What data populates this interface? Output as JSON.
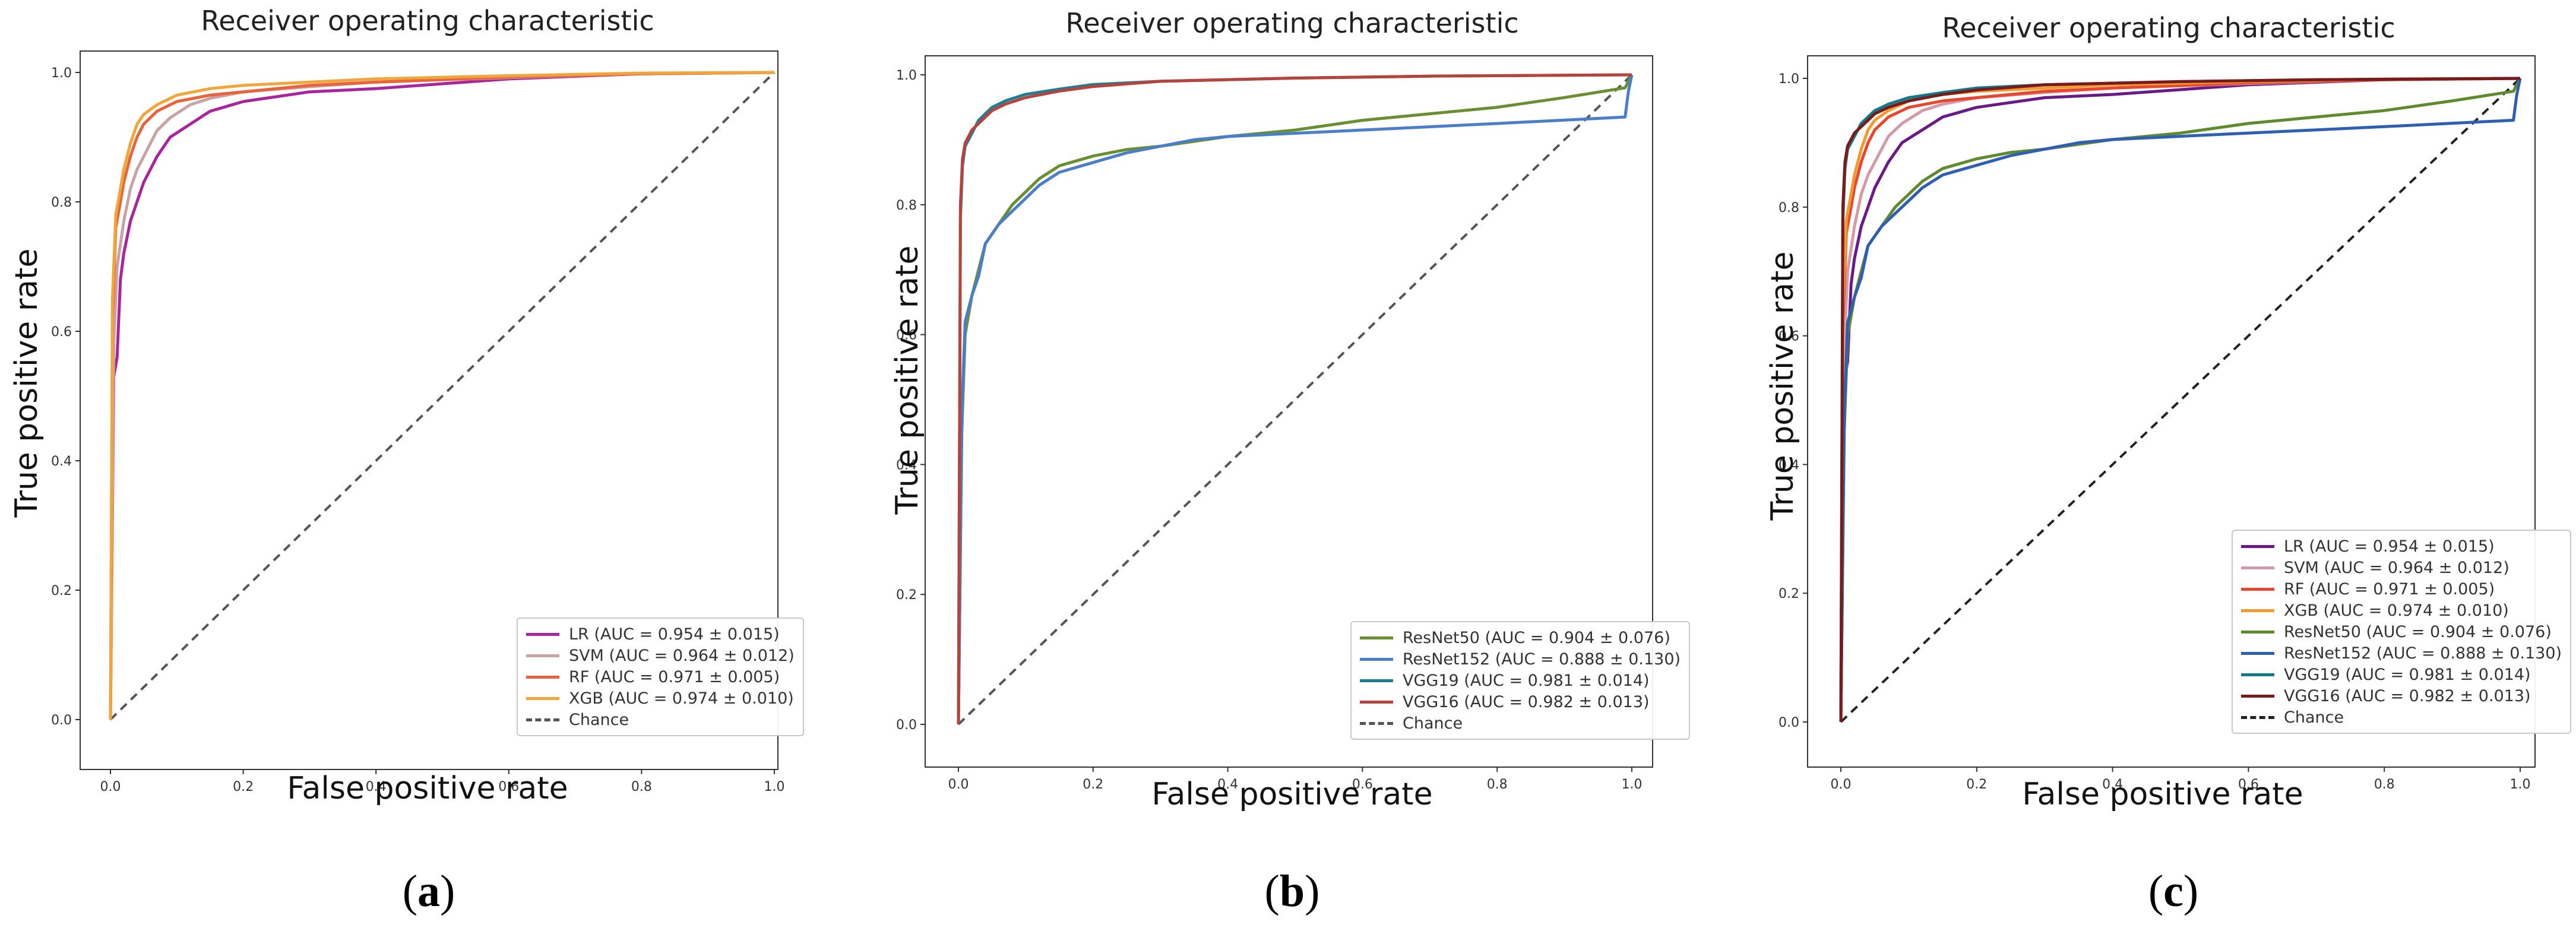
{
  "panels": [
    {
      "label": "a"
    },
    {
      "label": "b"
    },
    {
      "label": "c"
    }
  ],
  "chart_data": [
    {
      "type": "line",
      "title": "Receiver operating characteristic",
      "xlabel": "False positive rate",
      "ylabel": "True positive rate",
      "xlim": [
        0,
        1
      ],
      "ylim": [
        0,
        1
      ],
      "xticks": [
        "0.0",
        "0.2",
        "0.4",
        "0.6",
        "0.8",
        "1.0"
      ],
      "yticks": [
        "0.0",
        "0.2",
        "0.4",
        "0.6",
        "0.8",
        "1.0"
      ],
      "legend_position": "bottom-right",
      "series": [
        {
          "name": "LR (AUC = 0.954 ± 0.015)",
          "color": "#a8259c",
          "x": [
            0,
            0.005,
            0.01,
            0.015,
            0.02,
            0.03,
            0.04,
            0.05,
            0.07,
            0.09,
            0.12,
            0.15,
            0.2,
            0.3,
            0.4,
            0.6,
            0.8,
            1.0
          ],
          "y": [
            0,
            0.53,
            0.56,
            0.68,
            0.72,
            0.77,
            0.8,
            0.83,
            0.87,
            0.9,
            0.92,
            0.94,
            0.955,
            0.97,
            0.975,
            0.99,
            0.998,
            1.0
          ]
        },
        {
          "name": "SVM (AUC = 0.964 ± 0.012)",
          "color": "#c9a3a3",
          "x": [
            0,
            0.005,
            0.01,
            0.02,
            0.03,
            0.04,
            0.05,
            0.07,
            0.09,
            0.12,
            0.15,
            0.2,
            0.3,
            0.4,
            0.6,
            0.8,
            1.0
          ],
          "y": [
            0,
            0.58,
            0.7,
            0.77,
            0.82,
            0.85,
            0.87,
            0.91,
            0.93,
            0.95,
            0.96,
            0.97,
            0.978,
            0.985,
            0.992,
            0.998,
            1.0
          ]
        },
        {
          "name": "RF (AUC = 0.971 ± 0.005)",
          "color": "#e8643c",
          "x": [
            0,
            0.003,
            0.008,
            0.015,
            0.02,
            0.03,
            0.04,
            0.05,
            0.07,
            0.1,
            0.15,
            0.2,
            0.3,
            0.4,
            0.6,
            0.8,
            1.0
          ],
          "y": [
            0,
            0.62,
            0.76,
            0.8,
            0.83,
            0.87,
            0.9,
            0.92,
            0.94,
            0.955,
            0.965,
            0.97,
            0.98,
            0.985,
            0.993,
            0.998,
            1.0
          ]
        },
        {
          "name": "XGB (AUC = 0.974 ± 0.010)",
          "color": "#f0a63a",
          "x": [
            0,
            0.003,
            0.008,
            0.015,
            0.02,
            0.03,
            0.04,
            0.05,
            0.07,
            0.1,
            0.15,
            0.2,
            0.3,
            0.4,
            0.6,
            0.8,
            1.0
          ],
          "y": [
            0,
            0.65,
            0.78,
            0.82,
            0.85,
            0.89,
            0.92,
            0.935,
            0.95,
            0.965,
            0.975,
            0.98,
            0.985,
            0.99,
            0.995,
            0.999,
            1.0
          ]
        },
        {
          "name": "Chance",
          "color": "#555555",
          "dashed": true,
          "x": [
            0,
            1
          ],
          "y": [
            0,
            1
          ]
        }
      ]
    },
    {
      "type": "line",
      "title": "Receiver operating characteristic",
      "xlabel": "False positive rate",
      "ylabel": "True positive rate",
      "xlim": [
        0,
        1
      ],
      "ylim": [
        0,
        1
      ],
      "xticks": [
        "0.0",
        "0.2",
        "0.4",
        "0.6",
        "0.8",
        "1.0"
      ],
      "yticks": [
        "0.0",
        "0.2",
        "0.4",
        "0.6",
        "0.8",
        "1.0"
      ],
      "legend_position": "bottom-right",
      "series": [
        {
          "name": "ResNet50 (AUC = 0.904 ± 0.076)",
          "color": "#6a8f32",
          "x": [
            0,
            0.005,
            0.01,
            0.02,
            0.03,
            0.04,
            0.06,
            0.08,
            0.1,
            0.12,
            0.15,
            0.2,
            0.25,
            0.3,
            0.4,
            0.5,
            0.6,
            0.7,
            0.8,
            0.9,
            0.99,
            1.0
          ],
          "y": [
            0,
            0.45,
            0.6,
            0.66,
            0.7,
            0.74,
            0.77,
            0.8,
            0.82,
            0.84,
            0.86,
            0.875,
            0.885,
            0.89,
            0.905,
            0.915,
            0.93,
            0.94,
            0.95,
            0.965,
            0.98,
            1.0
          ]
        },
        {
          "name": "ResNet152 (AUC = 0.888 ± 0.130)",
          "color": "#4a7ec9",
          "x": [
            0,
            0.005,
            0.01,
            0.02,
            0.03,
            0.04,
            0.06,
            0.08,
            0.1,
            0.12,
            0.15,
            0.2,
            0.25,
            0.3,
            0.35,
            0.4,
            0.6,
            0.8,
            0.99,
            0.995,
            1.0
          ],
          "y": [
            0,
            0.48,
            0.62,
            0.66,
            0.69,
            0.74,
            0.77,
            0.79,
            0.81,
            0.83,
            0.85,
            0.865,
            0.88,
            0.89,
            0.9,
            0.905,
            0.915,
            0.925,
            0.935,
            0.975,
            1.0
          ]
        },
        {
          "name": "VGG19 (AUC = 0.981 ± 0.014)",
          "color": "#1f7f92",
          "x": [
            0,
            0.003,
            0.006,
            0.01,
            0.02,
            0.03,
            0.04,
            0.05,
            0.07,
            0.1,
            0.15,
            0.2,
            0.3,
            0.5,
            0.7,
            1.0
          ],
          "y": [
            0,
            0.78,
            0.86,
            0.89,
            0.91,
            0.93,
            0.94,
            0.95,
            0.96,
            0.97,
            0.978,
            0.985,
            0.99,
            0.995,
            0.998,
            1.0
          ]
        },
        {
          "name": "VGG16 (AUC = 0.982 ± 0.013)",
          "color": "#b8433c",
          "x": [
            0,
            0.003,
            0.006,
            0.01,
            0.02,
            0.03,
            0.04,
            0.05,
            0.07,
            0.1,
            0.15,
            0.2,
            0.3,
            0.5,
            0.7,
            1.0
          ],
          "y": [
            0,
            0.8,
            0.87,
            0.895,
            0.915,
            0.925,
            0.935,
            0.945,
            0.955,
            0.965,
            0.975,
            0.982,
            0.99,
            0.995,
            0.998,
            1.0
          ]
        },
        {
          "name": "Chance",
          "color": "#555555",
          "dashed": true,
          "x": [
            0,
            1
          ],
          "y": [
            0,
            1
          ]
        }
      ]
    },
    {
      "type": "line",
      "title": "Receiver operating characteristic",
      "xlabel": "False positive rate",
      "ylabel": "True positive rate",
      "xlim": [
        0,
        1
      ],
      "ylim": [
        0,
        1
      ],
      "xticks": [
        "0.0",
        "0.2",
        "0.4",
        "0.6",
        "0.8",
        "1.0"
      ],
      "yticks": [
        "0.0",
        "0.2",
        "0.4",
        "0.6",
        "0.8",
        "1.0"
      ],
      "legend_position": "bottom-right",
      "series": [
        {
          "name": "LR (AUC = 0.954 ± 0.015)",
          "color": "#6a1a86",
          "x": [
            0,
            0.005,
            0.01,
            0.015,
            0.02,
            0.03,
            0.04,
            0.05,
            0.07,
            0.09,
            0.12,
            0.15,
            0.2,
            0.3,
            0.4,
            0.6,
            0.8,
            1.0
          ],
          "y": [
            0,
            0.53,
            0.56,
            0.68,
            0.72,
            0.77,
            0.8,
            0.83,
            0.87,
            0.9,
            0.92,
            0.94,
            0.955,
            0.97,
            0.975,
            0.99,
            0.998,
            1.0
          ]
        },
        {
          "name": "SVM (AUC = 0.964 ± 0.012)",
          "color": "#d49aa6",
          "x": [
            0,
            0.005,
            0.01,
            0.02,
            0.03,
            0.04,
            0.05,
            0.07,
            0.09,
            0.12,
            0.15,
            0.2,
            0.3,
            0.4,
            0.6,
            0.8,
            1.0
          ],
          "y": [
            0,
            0.58,
            0.7,
            0.77,
            0.82,
            0.85,
            0.87,
            0.91,
            0.93,
            0.95,
            0.96,
            0.97,
            0.978,
            0.985,
            0.992,
            0.998,
            1.0
          ]
        },
        {
          "name": "RF (AUC = 0.971 ± 0.005)",
          "color": "#e8472e",
          "x": [
            0,
            0.003,
            0.008,
            0.015,
            0.02,
            0.03,
            0.04,
            0.05,
            0.07,
            0.1,
            0.15,
            0.2,
            0.3,
            0.4,
            0.6,
            0.8,
            1.0
          ],
          "y": [
            0,
            0.62,
            0.76,
            0.8,
            0.83,
            0.87,
            0.9,
            0.92,
            0.94,
            0.955,
            0.965,
            0.97,
            0.98,
            0.985,
            0.993,
            0.998,
            1.0
          ]
        },
        {
          "name": "XGB (AUC = 0.974 ± 0.010)",
          "color": "#f29a2e",
          "x": [
            0,
            0.003,
            0.008,
            0.015,
            0.02,
            0.03,
            0.04,
            0.05,
            0.07,
            0.1,
            0.15,
            0.2,
            0.3,
            0.4,
            0.6,
            0.8,
            1.0
          ],
          "y": [
            0,
            0.65,
            0.78,
            0.82,
            0.85,
            0.89,
            0.92,
            0.935,
            0.95,
            0.965,
            0.975,
            0.98,
            0.985,
            0.99,
            0.995,
            0.999,
            1.0
          ]
        },
        {
          "name": "ResNet50 (AUC = 0.904 ± 0.076)",
          "color": "#5f8a2e",
          "x": [
            0,
            0.005,
            0.01,
            0.02,
            0.03,
            0.04,
            0.06,
            0.08,
            0.1,
            0.12,
            0.15,
            0.2,
            0.25,
            0.3,
            0.4,
            0.5,
            0.6,
            0.7,
            0.8,
            0.9,
            0.99,
            1.0
          ],
          "y": [
            0,
            0.45,
            0.6,
            0.66,
            0.7,
            0.74,
            0.77,
            0.8,
            0.82,
            0.84,
            0.86,
            0.875,
            0.885,
            0.89,
            0.905,
            0.915,
            0.93,
            0.94,
            0.95,
            0.965,
            0.98,
            1.0
          ]
        },
        {
          "name": "ResNet152 (AUC = 0.888 ± 0.130)",
          "color": "#2f5fb3",
          "x": [
            0,
            0.005,
            0.01,
            0.02,
            0.03,
            0.04,
            0.06,
            0.08,
            0.1,
            0.12,
            0.15,
            0.2,
            0.25,
            0.3,
            0.35,
            0.4,
            0.6,
            0.8,
            0.99,
            0.995,
            1.0
          ],
          "y": [
            0,
            0.48,
            0.62,
            0.66,
            0.69,
            0.74,
            0.77,
            0.79,
            0.81,
            0.83,
            0.85,
            0.865,
            0.88,
            0.89,
            0.9,
            0.905,
            0.915,
            0.925,
            0.935,
            0.975,
            1.0
          ]
        },
        {
          "name": "VGG19 (AUC = 0.981 ± 0.014)",
          "color": "#127a8a",
          "x": [
            0,
            0.003,
            0.006,
            0.01,
            0.02,
            0.03,
            0.04,
            0.05,
            0.07,
            0.1,
            0.15,
            0.2,
            0.3,
            0.5,
            0.7,
            1.0
          ],
          "y": [
            0,
            0.78,
            0.86,
            0.89,
            0.91,
            0.93,
            0.94,
            0.95,
            0.96,
            0.97,
            0.978,
            0.985,
            0.99,
            0.995,
            0.998,
            1.0
          ]
        },
        {
          "name": "VGG16 (AUC = 0.982 ± 0.013)",
          "color": "#7a1a1a",
          "x": [
            0,
            0.003,
            0.006,
            0.01,
            0.02,
            0.03,
            0.04,
            0.05,
            0.07,
            0.1,
            0.15,
            0.2,
            0.3,
            0.5,
            0.7,
            1.0
          ],
          "y": [
            0,
            0.8,
            0.87,
            0.895,
            0.915,
            0.925,
            0.935,
            0.945,
            0.955,
            0.965,
            0.975,
            0.982,
            0.99,
            0.995,
            0.998,
            1.0
          ]
        },
        {
          "name": "Chance",
          "color": "#222222",
          "dashed": true,
          "x": [
            0,
            1
          ],
          "y": [
            0,
            1
          ]
        }
      ]
    }
  ]
}
